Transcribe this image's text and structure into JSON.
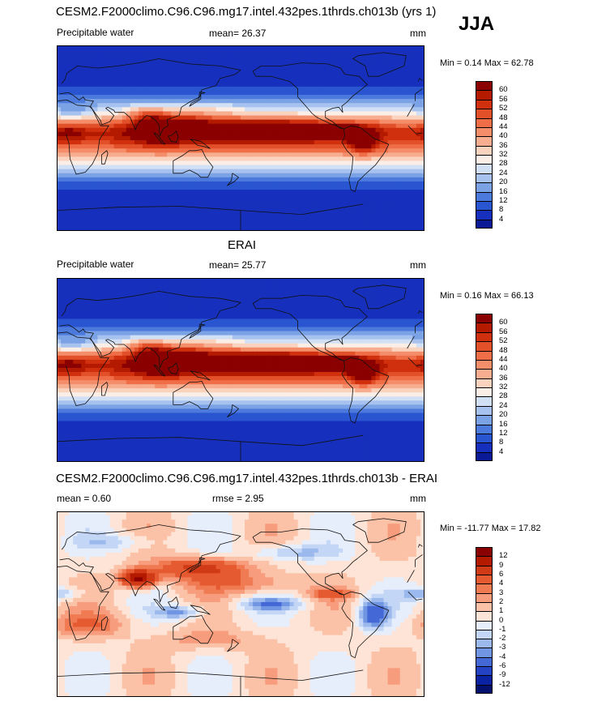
{
  "season": "JJA",
  "panels": [
    {
      "id": "model",
      "title": "CESM2.F2000climo.C96.C96.mg17.intel.432pes.1thrds.ch013b (yrs 1)",
      "variable": "Precipitable water",
      "stat1": "mean=  26.37",
      "stat2": "",
      "units": "mm",
      "minmax": "Min =   0.14 Max =  62.78",
      "levels": [
        "60",
        "56",
        "52",
        "48",
        "44",
        "40",
        "36",
        "32",
        "28",
        "24",
        "20",
        "16",
        "12",
        "8",
        "4"
      ],
      "colors": [
        "#8b0000",
        "#b41a00",
        "#d1300e",
        "#e2502a",
        "#ef6e47",
        "#f48d6a",
        "#f7ad8f",
        "#fad3be",
        "#fbeee6",
        "#d2e0f5",
        "#a7c2ee",
        "#7ca2e6",
        "#4c7adc",
        "#2a55d0",
        "#1630bd",
        "#0a1a96"
      ],
      "pattern": "abs"
    },
    {
      "id": "obs",
      "title": "ERAI",
      "variable": "Precipitable water",
      "stat1": "mean=  25.77",
      "stat2": "",
      "units": "mm",
      "minmax": "Min =   0.16 Max =  66.13",
      "levels": [
        "60",
        "56",
        "52",
        "48",
        "44",
        "40",
        "36",
        "32",
        "28",
        "24",
        "20",
        "16",
        "12",
        "8",
        "4"
      ],
      "colors": [
        "#8b0000",
        "#b41a00",
        "#d1300e",
        "#e2502a",
        "#ef6e47",
        "#f48d6a",
        "#f7ad8f",
        "#fad3be",
        "#fbeee6",
        "#d2e0f5",
        "#a7c2ee",
        "#7ca2e6",
        "#4c7adc",
        "#2a55d0",
        "#1630bd",
        "#0a1a96"
      ],
      "pattern": "abs"
    },
    {
      "id": "diff",
      "title": "CESM2.F2000climo.C96.C96.mg17.intel.432pes.1thrds.ch013b - ERAI",
      "variable": "",
      "stat1": "mean =    0.60",
      "stat2": "rmse =    2.95",
      "units": "mm",
      "minmax": "Min = -11.77 Max =  17.82",
      "levels": [
        "12",
        "9",
        "6",
        "4",
        "3",
        "2",
        "1",
        "0",
        "-1",
        "-2",
        "-3",
        "-4",
        "-6",
        "-9",
        "-12"
      ],
      "colors": [
        "#8b0000",
        "#b41a00",
        "#d13a17",
        "#e55a30",
        "#f07a52",
        "#f79c7c",
        "#fbc2a8",
        "#fde4d6",
        "#e6eefb",
        "#c4d6f5",
        "#9cb9ee",
        "#7095e3",
        "#4469d6",
        "#2343c4",
        "#0b22a3",
        "#04106e"
      ],
      "pattern": "diff"
    }
  ]
}
